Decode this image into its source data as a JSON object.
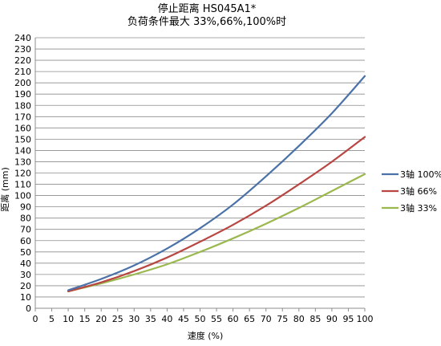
{
  "chart_data": {
    "type": "line",
    "title": "停止距离 HS045A1*",
    "subtitle": "负荷条件最大 33%,66%,100%时",
    "xlabel": "速度 (%)",
    "ylabel": "距离 (mm)",
    "xlim": [
      0,
      100
    ],
    "ylim": [
      0,
      240
    ],
    "xticks": [
      0,
      5,
      10,
      15,
      20,
      25,
      30,
      35,
      40,
      45,
      50,
      55,
      60,
      65,
      70,
      75,
      80,
      85,
      90,
      95,
      100
    ],
    "yticks": [
      0,
      10,
      20,
      30,
      40,
      50,
      60,
      70,
      80,
      90,
      100,
      110,
      120,
      130,
      140,
      150,
      160,
      170,
      180,
      190,
      200,
      210,
      220,
      230,
      240
    ],
    "grid": "horizontal",
    "legend_position": "right",
    "x": [
      10,
      20,
      30,
      40,
      50,
      60,
      70,
      80,
      90,
      100
    ],
    "series": [
      {
        "name": "3轴 100%",
        "color": "#4a72a8",
        "values": [
          16,
          26,
          38,
          53,
          71,
          92,
          117,
          144,
          173,
          206
        ]
      },
      {
        "name": "3轴 66%",
        "color": "#b84642",
        "values": [
          15,
          23,
          33,
          45,
          59,
          74,
          91,
          110,
          130,
          152
        ]
      },
      {
        "name": "3轴 33%",
        "color": "#9ab84e",
        "values": [
          15,
          22,
          30,
          39,
          50,
          62,
          75,
          89,
          104,
          119
        ]
      }
    ]
  }
}
